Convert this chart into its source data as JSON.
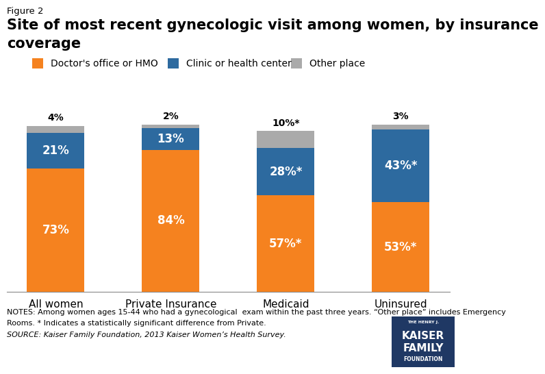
{
  "categories": [
    "All women",
    "Private Insurance",
    "Medicaid",
    "Uninsured"
  ],
  "doctor_office": [
    73,
    84,
    57,
    53
  ],
  "clinic": [
    21,
    13,
    28,
    43
  ],
  "other": [
    4,
    2,
    10,
    3
  ],
  "doctor_labels": [
    "73%",
    "84%",
    "57%*",
    "53%*"
  ],
  "clinic_labels": [
    "21%",
    "13%",
    "28%*",
    "43%*"
  ],
  "other_labels": [
    "4%",
    "2%",
    "10%*",
    "3%"
  ],
  "doctor_color": "#F5821F",
  "clinic_color": "#2D6A9F",
  "other_color": "#AAAAAA",
  "figure_label": "Figure 2",
  "title_line1": "Site of most recent gynecologic visit among women, by insurance",
  "title_line2": "coverage",
  "legend_labels": [
    "Doctor's office or HMO",
    "Clinic or health center",
    "Other place"
  ],
  "notes_line1": "NOTES: Among women ages 15-44 who had a gynecological  exam within the past three years. “Other place” includes Emergency",
  "notes_line2": "Rooms. * Indicates a statistically significant difference from Private.",
  "source_line": "SOURCE: Kaiser Family Foundation, 2013 Kaiser Women’s Health Survey.",
  "bar_width": 0.5,
  "ylim": [
    0,
    105
  ]
}
